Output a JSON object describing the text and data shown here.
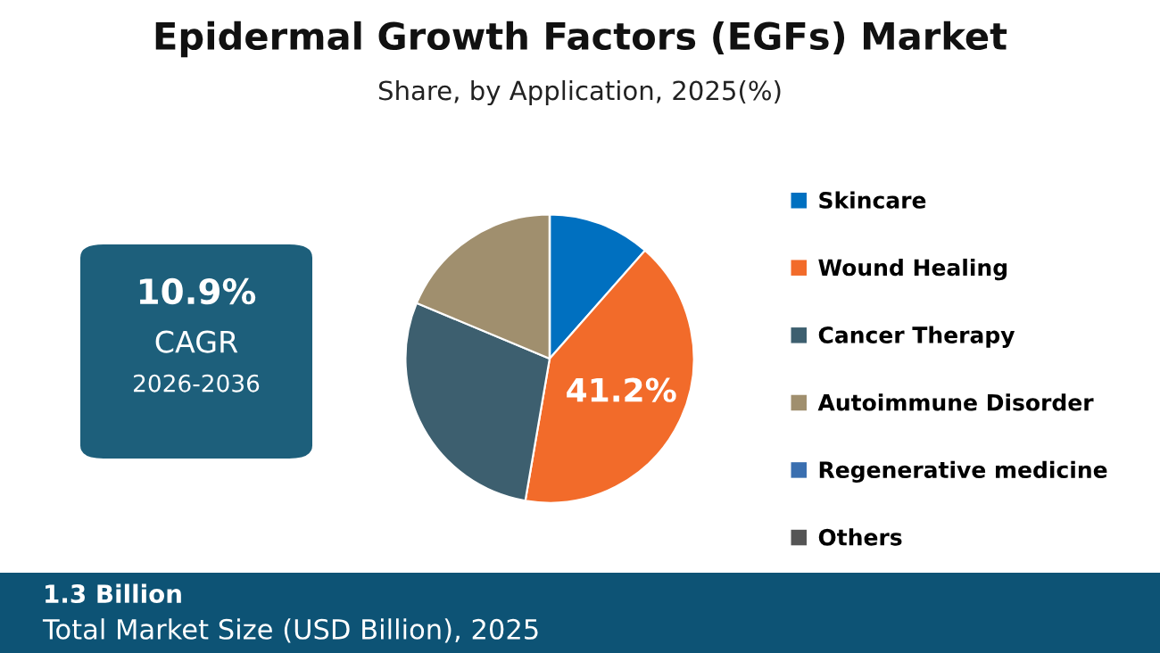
{
  "chart_data": {
    "type": "pie",
    "title": "Epidermal Growth Factors (EGFs) Market",
    "subtitle": "Share, by Application, 2025(%)",
    "categories": [
      "Skincare",
      "Wound Healing",
      "Cancer Therapy",
      "Autoimmune Disorder",
      "Regenerative medicine",
      "Others"
    ],
    "values": [
      11.5,
      41.2,
      28.6,
      18.7,
      0,
      0
    ],
    "colors": [
      "#0070c0",
      "#f26b2a",
      "#3d5f6f",
      "#a08f6e",
      "#3a6fb0",
      "#555555"
    ],
    "value_labels": [
      null,
      "41.2%",
      null,
      null,
      null,
      null
    ],
    "legend": "right",
    "annotations": [
      "10.9%",
      "CAGR",
      "2026-2036",
      "1.3 Billion",
      "Total Market Size (USD Billion), 2025"
    ]
  }
}
